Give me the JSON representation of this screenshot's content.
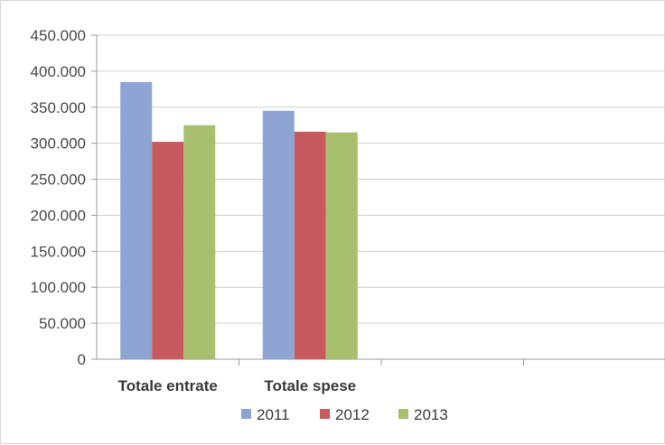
{
  "chart_data": {
    "type": "bar",
    "categories": [
      "Totale entrate",
      "Totale spese",
      "",
      ""
    ],
    "series": [
      {
        "name": "2011",
        "values": [
          385000,
          345000,
          null,
          null
        ],
        "color": "#8ea5d4"
      },
      {
        "name": "2012",
        "values": [
          302000,
          316000,
          null,
          null
        ],
        "color": "#c75a5f"
      },
      {
        "name": "2013",
        "values": [
          325000,
          315000,
          null,
          null
        ],
        "color": "#a8bf6e"
      }
    ],
    "ylim": [
      0,
      450000
    ],
    "yticks": [
      "0",
      "50.000",
      "100.000",
      "150.000",
      "200.000",
      "250.000",
      "300.000",
      "350.000",
      "400.000",
      "450.000"
    ],
    "grid": true,
    "legend": "bottom"
  }
}
